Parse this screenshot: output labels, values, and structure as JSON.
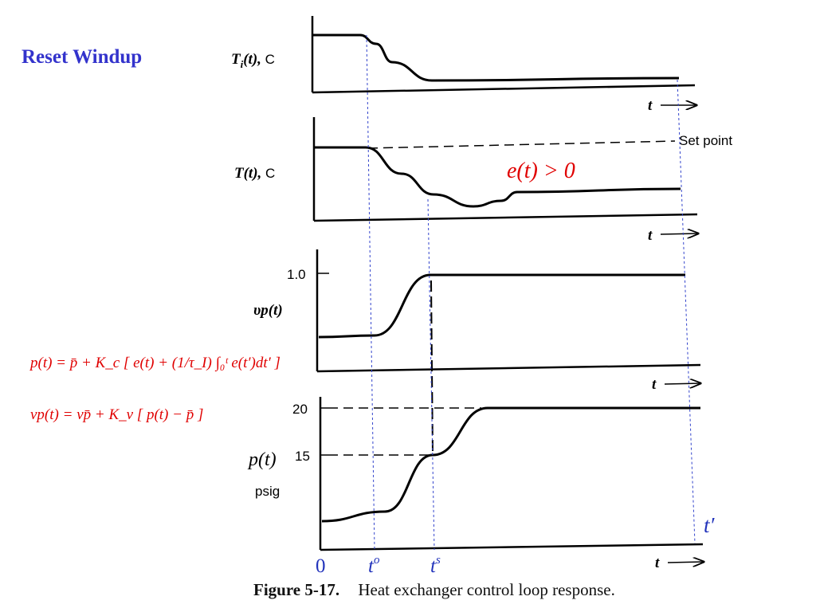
{
  "slide": {
    "title": "Reset Windup"
  },
  "chart_data": {
    "type": "line",
    "panels": [
      {
        "ylabel": "T_i(t), C",
        "xlabel": "t",
        "series": [
          {
            "x": [
              0,
              60,
              80,
              100,
              150,
              460
            ],
            "y": [
              1.0,
              1.0,
              0.8,
              0.4,
              0.0,
              0.05
            ]
          }
        ]
      },
      {
        "ylabel": "T(t), C",
        "xlabel": "t",
        "reference_line": "Set point",
        "annotation": "e(t) > 0",
        "series": [
          {
            "x": [
              0,
              65,
              110,
              150,
              200,
              235,
              255,
              460
            ],
            "y": [
              1.0,
              1.0,
              0.55,
              0.2,
              0.0,
              0.1,
              0.25,
              0.3
            ]
          }
        ]
      },
      {
        "ylabel": "vp(t)",
        "xlabel": "t",
        "ytick": "1.0",
        "series": [
          {
            "x": [
              0,
              70,
              140,
              460
            ],
            "y": [
              0.0,
              0.02,
              1.0,
              1.0
            ]
          }
        ]
      },
      {
        "ylabel": "p(t)",
        "ylabel_unit": "psig",
        "xlabel": "t",
        "yticks": [
          "20",
          "15"
        ],
        "series": [
          {
            "x": [
              0,
              80,
              140,
              210,
              480
            ],
            "y": [
              8,
              9,
              15,
              20,
              20
            ]
          }
        ]
      }
    ],
    "time_markers": [
      "0",
      "t^o",
      "t^s",
      "t'"
    ]
  },
  "equations": {
    "p": "p(t) = p̄ + K_c [ e(t) + (1/τ_I) ∫₀ᵗ e(t′)dt′ ]",
    "vp": "vp(t) = vp̄ + K_v [ p(t) − p̄ ]"
  },
  "caption": {
    "label": "Figure 5-17.",
    "text": "Heat exchanger control loop response."
  }
}
